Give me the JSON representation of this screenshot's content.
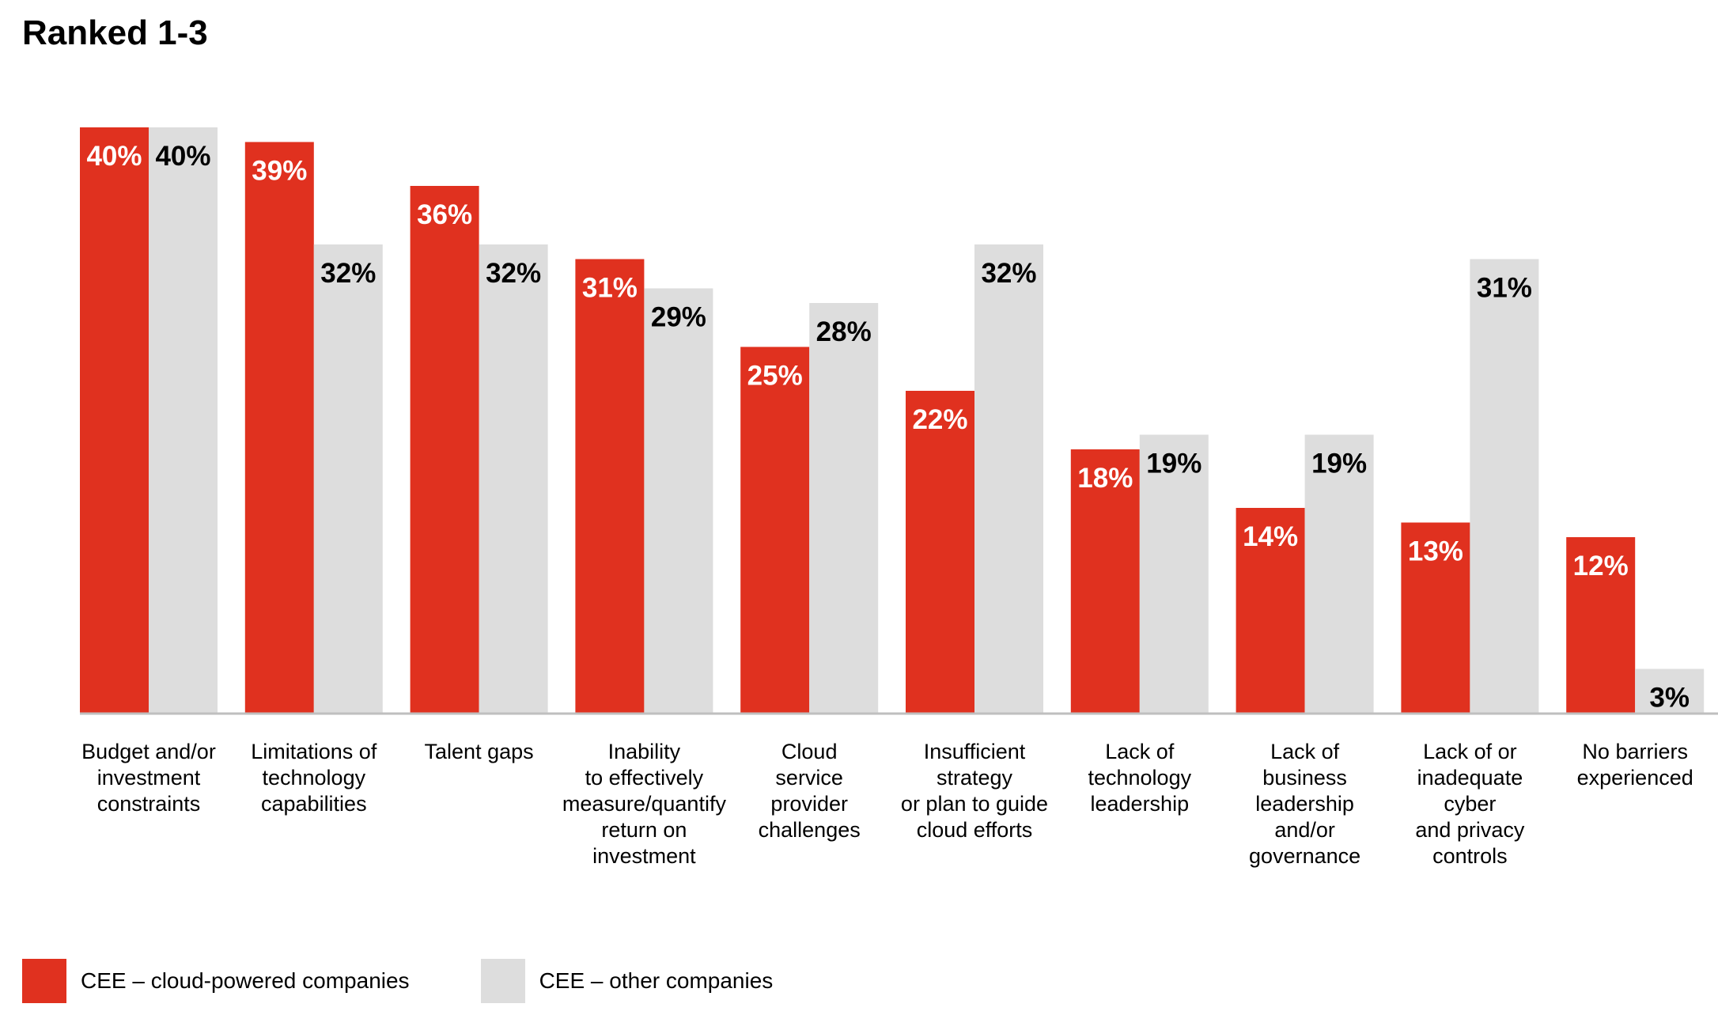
{
  "title": "Ranked 1-3",
  "colors": {
    "cee_cloud": "#e0311f",
    "cee_other": "#dddddd",
    "axis": "#bfbfbf"
  },
  "legend": [
    {
      "label": "CEE – cloud-powered companies",
      "color": "#e0311f"
    },
    {
      "label": "CEE – other companies",
      "color": "#dddddd"
    }
  ],
  "chart_data": {
    "type": "bar",
    "title": "Ranked 1-3",
    "categories": [
      [
        "Budget and/or",
        "investment",
        "constraints"
      ],
      [
        "Limitations of",
        "technology",
        "capabilities"
      ],
      [
        "Talent gaps"
      ],
      [
        "Inability",
        "to effectively",
        "measure/quantify",
        "return on",
        "investment"
      ],
      [
        "Cloud",
        "service",
        "provider",
        "challenges"
      ],
      [
        "Insufficient",
        "strategy",
        "or plan to guide",
        "cloud efforts"
      ],
      [
        "Lack of",
        "technology",
        "leadership"
      ],
      [
        "Lack of",
        "business",
        "leadership",
        "and/or",
        "governance"
      ],
      [
        "Lack of or",
        "inadequate",
        "cyber",
        "and privacy",
        "controls"
      ],
      [
        "No barriers",
        "experienced"
      ]
    ],
    "series": [
      {
        "name": "CEE – cloud-powered companies",
        "values": [
          40,
          39,
          36,
          31,
          25,
          22,
          18,
          14,
          13,
          12
        ],
        "labels": [
          "40%",
          "39%",
          "36%",
          "31%",
          "25%",
          "22%",
          "18%",
          "14%",
          "13%",
          "12%"
        ]
      },
      {
        "name": "CEE – other companies",
        "values": [
          40,
          32,
          32,
          29,
          28,
          32,
          19,
          19,
          31,
          3
        ],
        "labels": [
          "40%",
          "32%",
          "32%",
          "29%",
          "28%",
          "32%",
          "19%",
          "19%",
          "31%",
          "3%"
        ]
      }
    ],
    "ylim": [
      0,
      40
    ],
    "grid": false,
    "legend_position": "bottom-left"
  }
}
